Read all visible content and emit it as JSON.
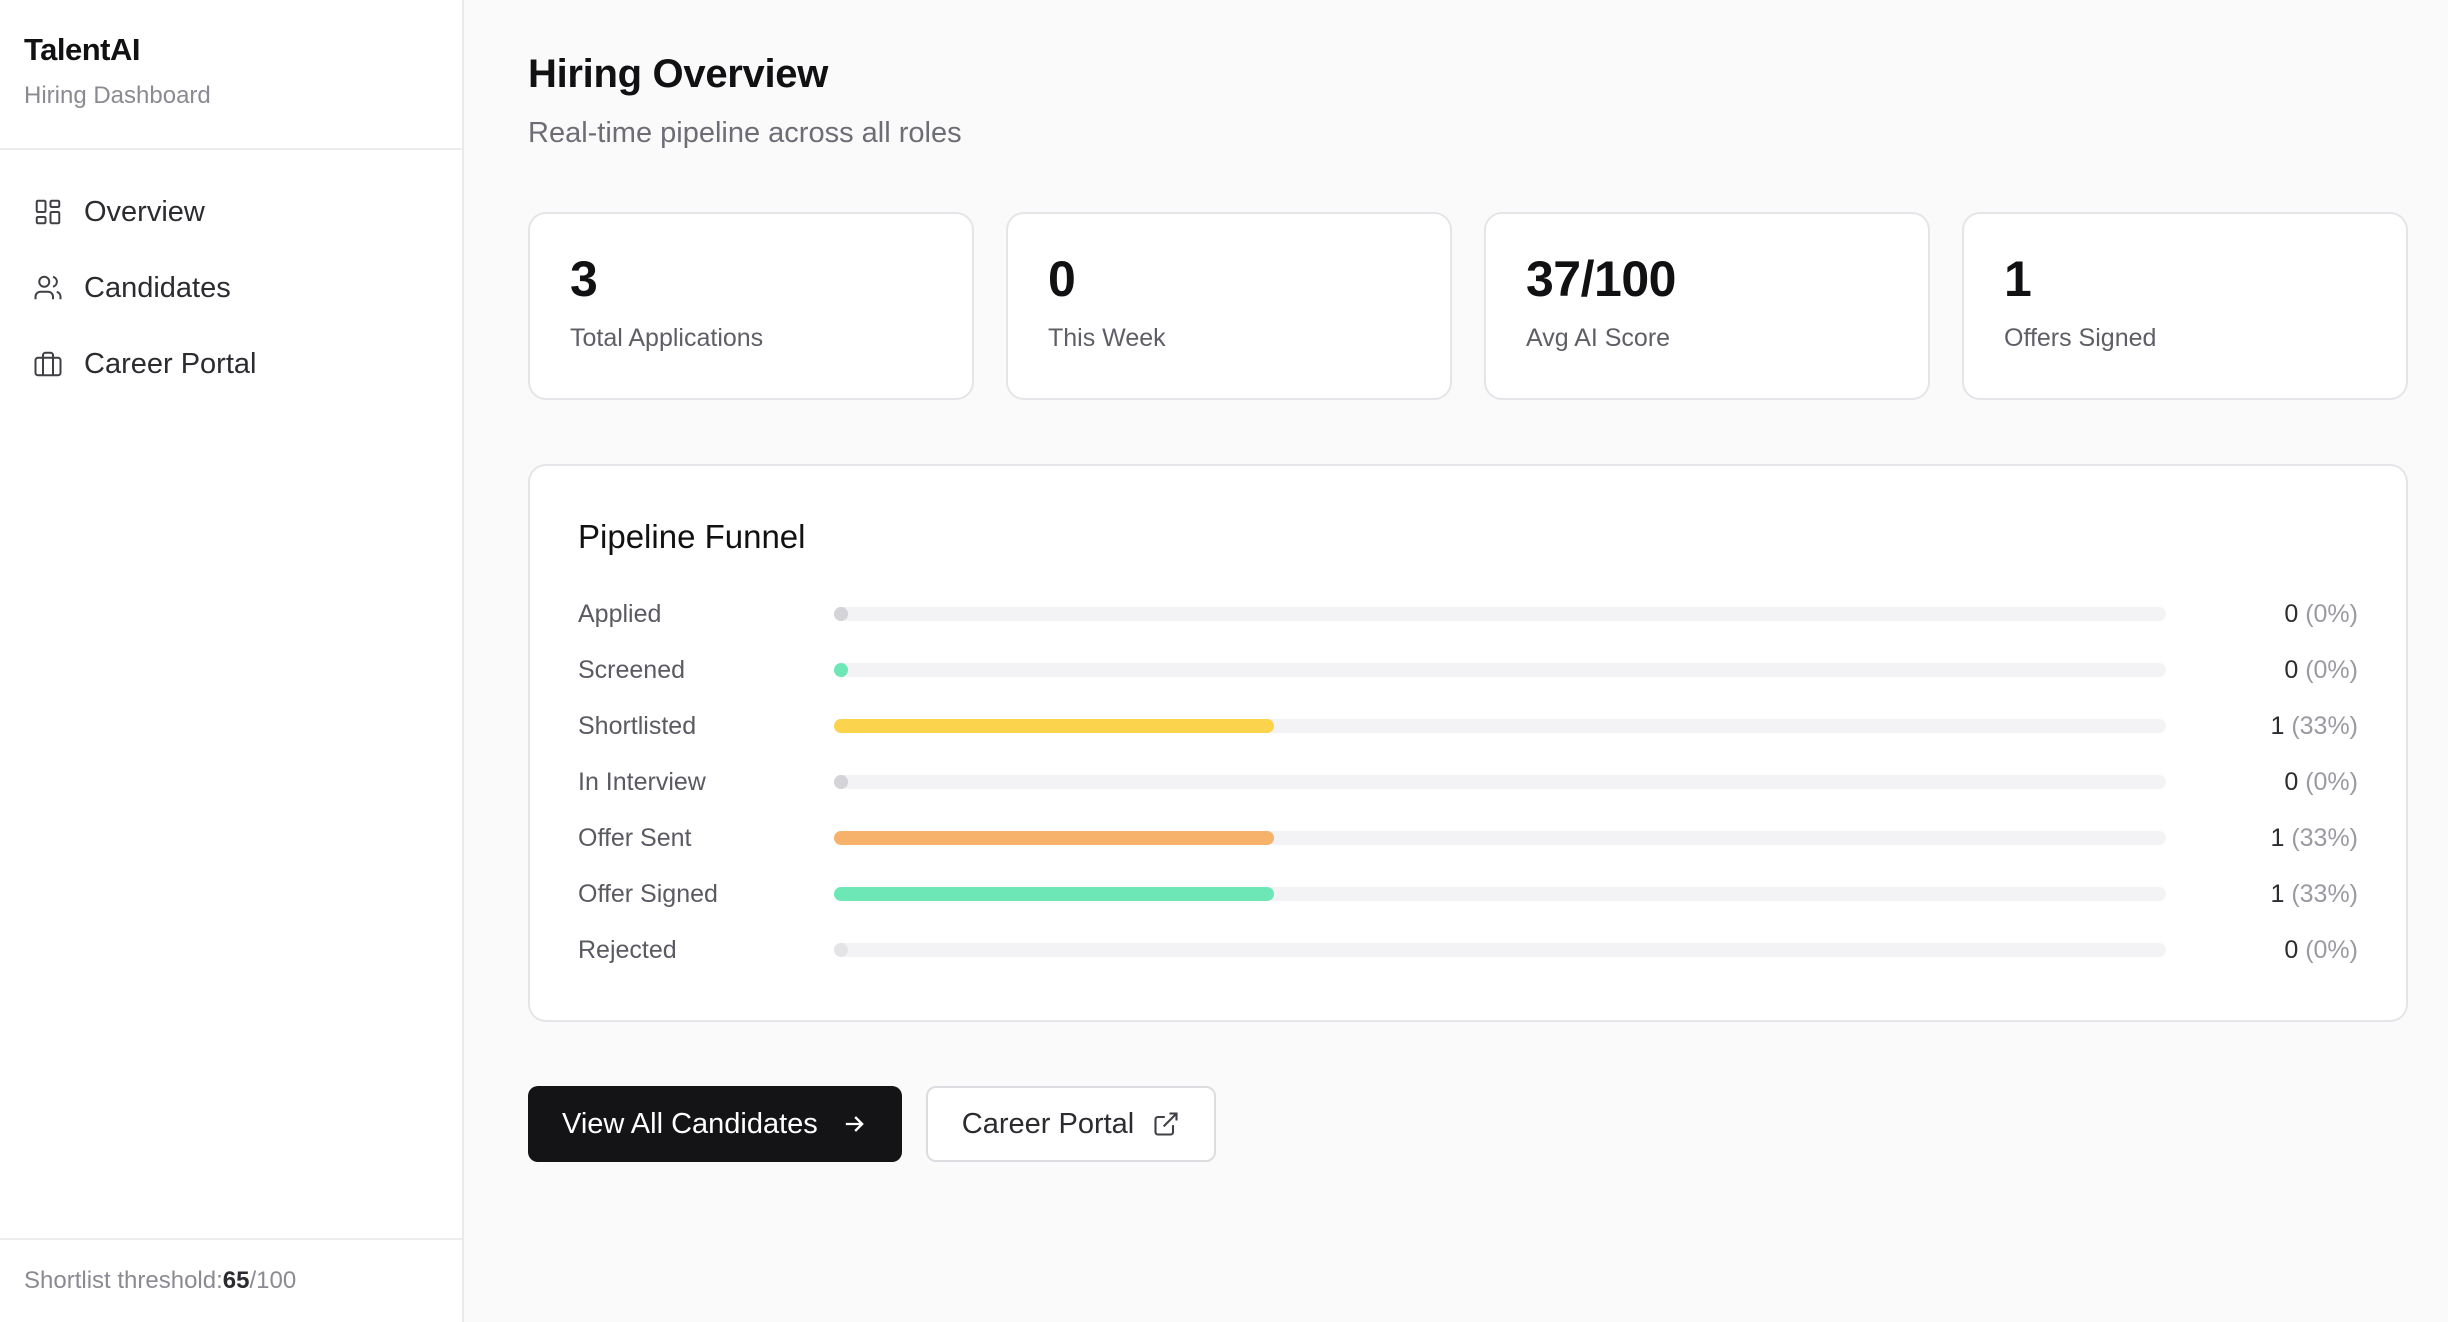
{
  "sidebar": {
    "brand_title": "TalentAI",
    "brand_subtitle": "Hiring Dashboard",
    "items": [
      {
        "label": "Overview",
        "icon": "grid-icon"
      },
      {
        "label": "Candidates",
        "icon": "users-icon"
      },
      {
        "label": "Career Portal",
        "icon": "briefcase-icon"
      }
    ],
    "footer": {
      "prefix": "Shortlist threshold: ",
      "value": "65",
      "suffix": "/100"
    }
  },
  "header": {
    "title": "Hiring Overview",
    "subtitle": "Real-time pipeline across all roles"
  },
  "stats": [
    {
      "value": "3",
      "label": "Total Applications"
    },
    {
      "value": "0",
      "label": "This Week"
    },
    {
      "value": "37/100",
      "label": "Avg AI Score"
    },
    {
      "value": "1",
      "label": "Offers Signed"
    }
  ],
  "funnel": {
    "title": "Pipeline Funnel",
    "rows": [
      {
        "label": "Applied",
        "count": "0",
        "pct": "(0%)",
        "fraction": 0,
        "color": "#d4d4d8"
      },
      {
        "label": "Screened",
        "count": "0",
        "pct": "(0%)",
        "fraction": 0,
        "color": "#6ee7b7"
      },
      {
        "label": "Shortlisted",
        "count": "1",
        "pct": "(33%)",
        "fraction": 0.33,
        "color": "#fcd34d"
      },
      {
        "label": "In Interview",
        "count": "0",
        "pct": "(0%)",
        "fraction": 0,
        "color": "#d4d4d8"
      },
      {
        "label": "Offer Sent",
        "count": "1",
        "pct": "(33%)",
        "fraction": 0.33,
        "color": "#f6b26b"
      },
      {
        "label": "Offer Signed",
        "count": "1",
        "pct": "(33%)",
        "fraction": 0.33,
        "color": "#6ee7b7"
      },
      {
        "label": "Rejected",
        "count": "0",
        "pct": "(0%)",
        "fraction": 0,
        "color": "#e4e4e7"
      }
    ]
  },
  "actions": {
    "primary_label": "View All Candidates",
    "primary_icon": "arrow-right-icon",
    "secondary_label": "Career Portal",
    "secondary_icon": "external-link-icon"
  }
}
